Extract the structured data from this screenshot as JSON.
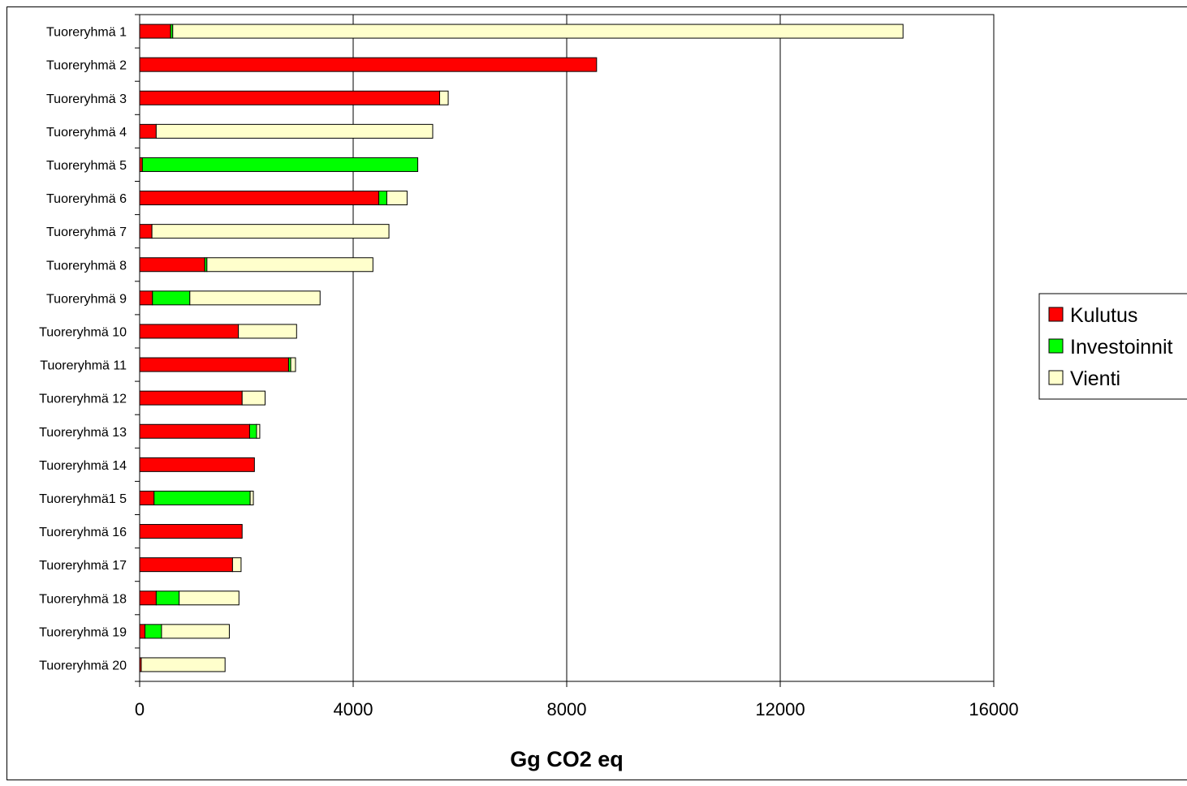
{
  "chart_data": {
    "type": "bar",
    "orientation": "horizontal",
    "stacked": true,
    "categories": [
      "Tuoreryhmä 1",
      "Tuoreryhmä 2",
      "Tuoreryhmä 3",
      "Tuoreryhmä 4",
      "Tuoreryhmä 5",
      "Tuoreryhmä 6",
      "Tuoreryhmä 7",
      "Tuoreryhmä 8",
      "Tuoreryhmä 9",
      "Tuoreryhmä 10",
      "Tuoreryhmä 11",
      "Tuoreryhmä 12",
      "Tuoreryhmä 13",
      "Tuoreryhmä 14",
      "Tuoreryhmä1 5",
      "Tuoreryhmä 16",
      "Tuoreryhmä 17",
      "Tuoreryhmä 18",
      "Tuoreryhmä 19",
      "Tuoreryhmä 20"
    ],
    "series": [
      {
        "name": "Kulutus",
        "color": "#ff0000",
        "values": [
          580,
          8560,
          5620,
          310,
          50,
          4480,
          230,
          1220,
          240,
          1850,
          2790,
          1920,
          2060,
          2150,
          270,
          1920,
          1740,
          310,
          100,
          30
        ]
      },
      {
        "name": "Investoinnit",
        "color": "#00ff00",
        "values": [
          40,
          0,
          0,
          0,
          5160,
          150,
          0,
          40,
          700,
          0,
          40,
          0,
          130,
          0,
          1800,
          0,
          0,
          430,
          310,
          0
        ]
      },
      {
        "name": "Vienti",
        "color": "#ffffcc",
        "values": [
          13680,
          0,
          160,
          5180,
          0,
          380,
          4440,
          3110,
          2440,
          1090,
          90,
          430,
          60,
          0,
          60,
          0,
          160,
          1120,
          1270,
          1570
        ]
      }
    ],
    "xlabel": "Gg CO2 eq",
    "xlim": [
      0,
      16000
    ],
    "xticks": [
      "0",
      "4000",
      "8000",
      "12000",
      "16000"
    ],
    "grid": "vertical",
    "legend_position": "right"
  }
}
